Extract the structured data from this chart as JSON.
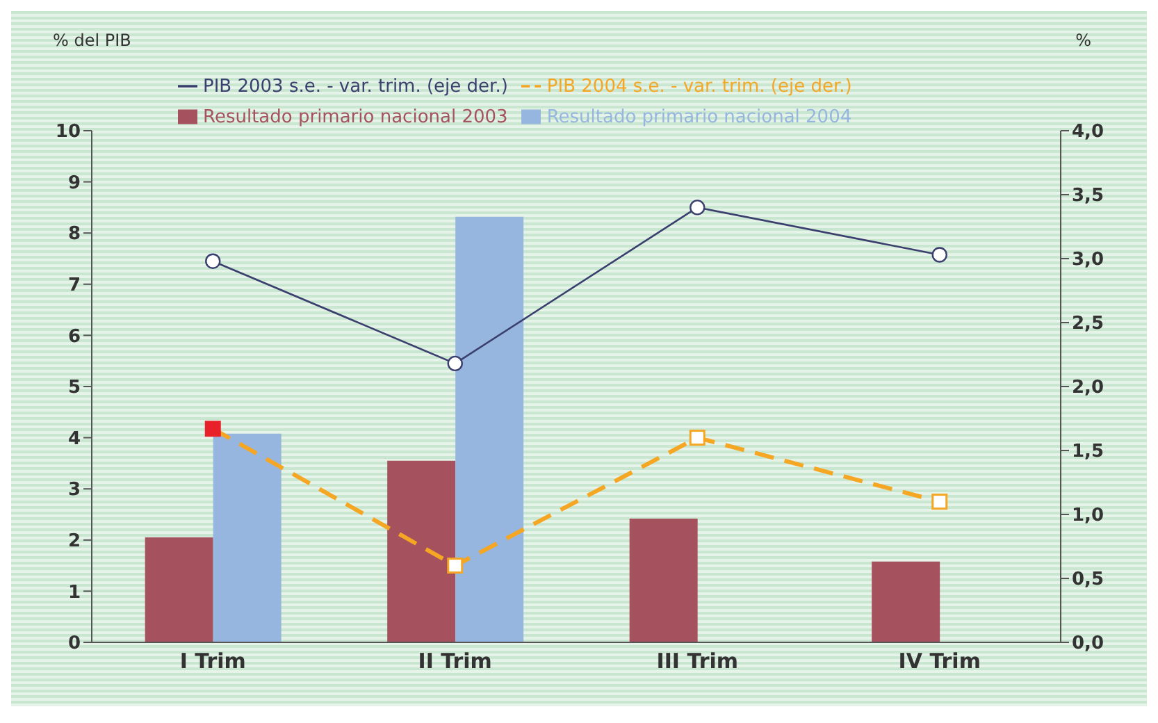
{
  "chart_data": {
    "type": "bar",
    "ylabel": "% del PIB",
    "y2label": "%",
    "categories": [
      "I Trim",
      "II Trim",
      "III Trim",
      "IV Trim"
    ],
    "series": [
      {
        "name": "Resultado primario nacional 2003",
        "color": "#a5525e",
        "values": [
          2.05,
          3.55,
          2.42,
          1.58
        ]
      },
      {
        "name": "Resultado primario nacional 2004",
        "color": "#96b6e0",
        "values": [
          4.08,
          8.32,
          null,
          null
        ]
      },
      {
        "name": "PIB 2003 s.e. - var. trim. (eje der.)",
        "type": "line",
        "axis": "y2",
        "color": "#3a3f6e",
        "marker": "circle",
        "line_style": "solid",
        "values": [
          2.98,
          2.18,
          3.4,
          3.03
        ]
      },
      {
        "name": "PIB 2004 s.e. - var. trim. (eje der.)",
        "type": "line",
        "axis": "y2",
        "color": "#f5a623",
        "marker": "square",
        "line_style": "dashed",
        "colors": [
          "#e8202a",
          "#f5a623",
          "#f5a623",
          "#f5a623"
        ],
        "values": [
          1.67,
          0.6,
          1.6,
          1.1
        ]
      }
    ],
    "ylim": [
      0,
      10
    ],
    "yticks": [
      0,
      1,
      2,
      3,
      4,
      5,
      6,
      7,
      8,
      9,
      10
    ],
    "y2lim": [
      0,
      4
    ],
    "y2ticks": [
      {
        "value": 0,
        "label": "0,0"
      },
      {
        "value": 0.5,
        "label": "0,5"
      },
      {
        "value": 1,
        "label": "1,0"
      },
      {
        "value": 1.5,
        "label": "1,5"
      },
      {
        "value": 2,
        "label": "2,0"
      },
      {
        "value": 2.5,
        "label": "2,5"
      },
      {
        "value": 3,
        "label": "3,0"
      },
      {
        "value": 3.5,
        "label": "3,5"
      },
      {
        "value": 4,
        "label": "4,0"
      }
    ],
    "legend": "top",
    "grid": false
  }
}
